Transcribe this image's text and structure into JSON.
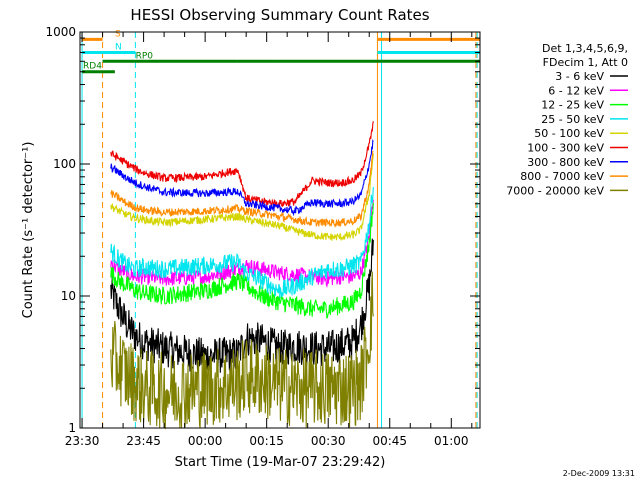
{
  "chart_data": {
    "type": "line",
    "title": "HESSI Observing Summary Count Rates",
    "xlabel": "Start Time (19-Mar-07 23:29:42)",
    "ylabel": "Count Rate (s⁻¹ detector⁻¹)",
    "y_scale": "log",
    "ylim": [
      1,
      1000
    ],
    "xlim_minutes": [
      -0.5,
      97
    ],
    "x_tick_labels": [
      "23:30",
      "23:45",
      "00:00",
      "00:15",
      "00:30",
      "00:45",
      "01:00"
    ],
    "x_tick_minutes": [
      0,
      15,
      30,
      45,
      60,
      75,
      90
    ],
    "y_tick_labels": [
      "1",
      "10",
      "100",
      "1000"
    ],
    "y_tick_values": [
      1,
      10,
      100,
      1000
    ],
    "footer_date": "2-Dec-2009 13:31",
    "legend": {
      "header_lines": [
        "Det 1,3,4,5,6,9,",
        "FDecim 1, Att 0"
      ],
      "placement": "right"
    },
    "flags": [
      {
        "label": "S",
        "color": "#ff8c00",
        "segments": [
          [
            0,
            5
          ],
          [
            72,
            97
          ]
        ],
        "level": 880
      },
      {
        "label": "N",
        "color": "#00e5ee",
        "segments": [
          [
            0,
            13
          ],
          [
            72,
            97
          ]
        ],
        "level": 700
      },
      {
        "label": "RP0",
        "color": "#008000",
        "segments": [
          [
            5,
            38
          ],
          [
            38,
            48
          ],
          [
            48,
            97
          ]
        ],
        "level": 600
      },
      {
        "label": "RD4",
        "color": "#008000",
        "segments": [
          [
            0,
            8
          ]
        ],
        "level": 500
      }
    ],
    "vertical_markers": [
      {
        "minute": 0,
        "color": "#00e5ee",
        "style": "solid"
      },
      {
        "minute": 5,
        "color": "#ff8c00",
        "style": "dashed"
      },
      {
        "minute": 13,
        "color": "#00e5ee",
        "style": "dashed"
      },
      {
        "minute": 72,
        "color": "#ff8c00",
        "style": "solid"
      },
      {
        "minute": 73,
        "color": "#00e5ee",
        "style": "solid"
      },
      {
        "minute": 96,
        "color": "#ff8c00",
        "style": "dashed"
      },
      {
        "minute": 96.3,
        "color": "#00e5ee",
        "style": "dashed"
      }
    ],
    "series": [
      {
        "name": "3 - 6 keV",
        "color": "#000000",
        "noise": 0.14,
        "x": [
          7,
          9,
          11,
          13,
          15,
          20,
          30,
          38,
          40,
          44,
          48,
          52,
          56,
          60,
          63,
          66,
          68,
          70,
          71
        ],
        "values": [
          11,
          8,
          6,
          5,
          4.5,
          4,
          3.5,
          3.6,
          4.8,
          4.5,
          4,
          4.2,
          4,
          4,
          4.2,
          4.5,
          6,
          12,
          25
        ]
      },
      {
        "name": "6 - 12 keV",
        "color": "#ff00ff",
        "noise": 0.06,
        "x": [
          7,
          9,
          11,
          13,
          15,
          20,
          30,
          38,
          40,
          44,
          48,
          52,
          56,
          60,
          63,
          66,
          68,
          70,
          71
        ],
        "values": [
          18,
          16,
          15,
          14,
          14,
          13.5,
          14,
          16,
          17,
          16,
          15,
          14.5,
          14,
          13.5,
          14,
          14,
          15,
          28,
          60
        ]
      },
      {
        "name": "12 - 25 keV",
        "color": "#00ff00",
        "noise": 0.07,
        "x": [
          7,
          9,
          11,
          13,
          15,
          20,
          30,
          38,
          40,
          44,
          48,
          52,
          56,
          60,
          63,
          66,
          68,
          70,
          71
        ],
        "values": [
          15,
          13,
          12,
          11,
          10.5,
          10,
          11,
          13,
          12,
          10,
          9,
          8.5,
          8,
          8,
          8.5,
          9,
          11,
          25,
          50
        ]
      },
      {
        "name": "25 - 50 keV",
        "color": "#00e5ee",
        "noise": 0.07,
        "x": [
          7,
          9,
          11,
          13,
          15,
          20,
          30,
          38,
          40,
          44,
          48,
          52,
          56,
          60,
          63,
          66,
          68,
          70,
          71
        ],
        "values": [
          22,
          19,
          17,
          16,
          16.5,
          16,
          17,
          18,
          15,
          13,
          11,
          12,
          14,
          16,
          16,
          17,
          18,
          35,
          70
        ]
      },
      {
        "name": "50 - 100 keV",
        "color": "#d4d400",
        "noise": 0.03,
        "x": [
          7,
          9,
          11,
          13,
          15,
          20,
          30,
          38,
          40,
          44,
          48,
          52,
          56,
          60,
          63,
          66,
          68,
          70,
          71
        ],
        "values": [
          48,
          44,
          41,
          39,
          38,
          36,
          38,
          40,
          38,
          36,
          34,
          31,
          29,
          28,
          28,
          29,
          32,
          60,
          120
        ]
      },
      {
        "name": "100 - 300 keV",
        "color": "#ee0000",
        "noise": 0.03,
        "x": [
          7,
          9,
          11,
          13,
          15,
          20,
          30,
          38,
          40,
          44,
          48,
          52,
          56,
          60,
          63,
          66,
          68,
          70,
          71
        ],
        "values": [
          120,
          110,
          100,
          92,
          86,
          78,
          80,
          90,
          55,
          52,
          50,
          52,
          75,
          72,
          72,
          75,
          85,
          140,
          200
        ]
      },
      {
        "name": "300 - 800 keV",
        "color": "#0000ff",
        "noise": 0.03,
        "x": [
          7,
          9,
          11,
          13,
          15,
          20,
          30,
          38,
          40,
          44,
          48,
          52,
          56,
          60,
          63,
          66,
          68,
          70,
          71
        ],
        "values": [
          95,
          86,
          78,
          72,
          68,
          61,
          60,
          62,
          50,
          48,
          46,
          44,
          51,
          50,
          50,
          52,
          58,
          100,
          150
        ]
      },
      {
        "name": "800 - 7000 keV",
        "color": "#ff8c00",
        "noise": 0.03,
        "x": [
          7,
          9,
          11,
          13,
          15,
          20,
          30,
          38,
          40,
          44,
          48,
          52,
          56,
          60,
          63,
          66,
          68,
          70,
          71
        ],
        "values": [
          60,
          55,
          50,
          47,
          45,
          43,
          44,
          46,
          44,
          42,
          40,
          38,
          36,
          36,
          36,
          37,
          40,
          70,
          130
        ]
      },
      {
        "name": "7000 - 20000 keV",
        "color": "#808000",
        "noise": 0.3,
        "x": [
          7,
          9,
          11,
          13,
          15,
          20,
          30,
          38,
          40,
          44,
          48,
          52,
          56,
          60,
          63,
          66,
          68,
          70,
          71
        ],
        "values": [
          3.5,
          3,
          2.5,
          2.2,
          2,
          1.9,
          2,
          2.2,
          2.5,
          2.3,
          2.1,
          2,
          2,
          2,
          2,
          2,
          2.2,
          5,
          10
        ]
      }
    ]
  }
}
